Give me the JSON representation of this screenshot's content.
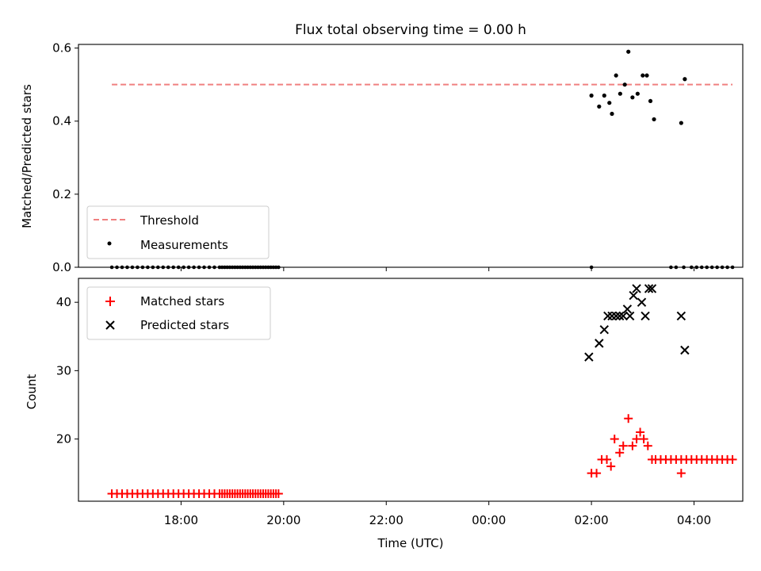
{
  "chart_data": {
    "type": "scatter",
    "title": "Flux total observing time = 0.00 h",
    "xlabel": "Time (UTC)",
    "x_unit": "hours since 18:00 UTC",
    "xlim": [
      -2.0,
      10.95
    ],
    "xticks": [
      {
        "v": 0,
        "label": "18:00"
      },
      {
        "v": 2,
        "label": "20:00"
      },
      {
        "v": 4,
        "label": "22:00"
      },
      {
        "v": 6,
        "label": "00:00"
      },
      {
        "v": 8,
        "label": "02:00"
      },
      {
        "v": 10,
        "label": "04:00"
      }
    ],
    "panels": [
      {
        "name": "ratio",
        "ylabel": "Matched/Predicted stars",
        "ylim": [
          0,
          0.61
        ],
        "yticks": [
          {
            "v": 0,
            "label": "0.0"
          },
          {
            "v": 0.2,
            "label": "0.2"
          },
          {
            "v": 0.4,
            "label": "0.4"
          },
          {
            "v": 0.6,
            "label": "0.6"
          }
        ],
        "legend": {
          "position": "lower-left",
          "entries": [
            {
              "label": "Threshold",
              "marker": "dashed-line",
              "color": "#f08080"
            },
            {
              "label": "Measurements",
              "marker": "dot",
              "color": "#000000"
            }
          ]
        },
        "threshold": {
          "name": "Threshold",
          "value": 0.5,
          "x": [
            -1.35,
            10.75
          ],
          "color": "#f08080"
        },
        "measurements": {
          "name": "Measurements",
          "color": "#000000",
          "x": [
            8.0,
            8.15,
            8.25,
            8.35,
            8.4,
            8.48,
            8.56,
            8.65,
            8.72,
            8.8,
            8.9,
            9.0,
            9.08,
            9.15,
            9.22,
            9.75,
            9.82
          ],
          "y": [
            0.47,
            0.44,
            0.47,
            0.45,
            0.42,
            0.525,
            0.475,
            0.5,
            0.59,
            0.465,
            0.475,
            0.525,
            0.525,
            0.455,
            0.405,
            0.395,
            0.515
          ]
        },
        "zero_measurements": {
          "name": "Measurements",
          "color": "#000000",
          "ranges": [
            [
              -1.35,
              1.9
            ],
            [
              0.8,
              1.9
            ]
          ],
          "x_extra": [
            8.0,
            9.55,
            9.65,
            9.8
          ],
          "x_tail_range": [
            9.95,
            10.75
          ],
          "y": 0
        }
      },
      {
        "name": "counts",
        "ylabel": "Count",
        "ylim": [
          10.9,
          43.5
        ],
        "yticks": [
          {
            "v": 20,
            "label": "20"
          },
          {
            "v": 30,
            "label": "30"
          },
          {
            "v": 40,
            "label": "40"
          }
        ],
        "legend": {
          "position": "upper-left",
          "entries": [
            {
              "label": "Matched stars",
              "marker": "plus",
              "color": "#ff0000"
            },
            {
              "label": "Predicted stars",
              "marker": "x",
              "color": "#000000"
            }
          ]
        },
        "matched": {
          "name": "Matched stars",
          "color": "#ff0000",
          "low_ranges": [
            {
              "from": -1.35,
              "to": 1.9,
              "step": 0.1,
              "y": 12
            },
            {
              "from": 0.8,
              "to": 1.9,
              "step": 0.1,
              "y": 12
            }
          ],
          "x": [
            8.0,
            8.1,
            8.2,
            8.3,
            8.38,
            8.45,
            8.55,
            8.62,
            8.72,
            8.8,
            8.88,
            8.95,
            9.02,
            9.1,
            9.18,
            9.75
          ],
          "y": [
            15,
            15,
            17,
            17,
            16,
            20,
            18,
            19,
            23,
            19,
            20,
            21,
            20,
            19,
            17,
            15
          ],
          "tail_range": {
            "from": 9.25,
            "to": 10.8,
            "step": 0.1,
            "y": 17
          }
        },
        "predicted": {
          "name": "Predicted stars",
          "color": "#000000",
          "x": [
            7.95,
            8.15,
            8.25,
            8.32,
            8.4,
            8.48,
            8.55,
            8.62,
            8.7,
            8.75,
            8.82,
            8.88,
            8.98,
            9.05,
            9.12,
            9.18,
            9.75,
            9.82
          ],
          "y": [
            32,
            34,
            36,
            38,
            38,
            38,
            38,
            38,
            39,
            38,
            41,
            42,
            40,
            38,
            42,
            42,
            38,
            33
          ]
        }
      }
    ]
  }
}
